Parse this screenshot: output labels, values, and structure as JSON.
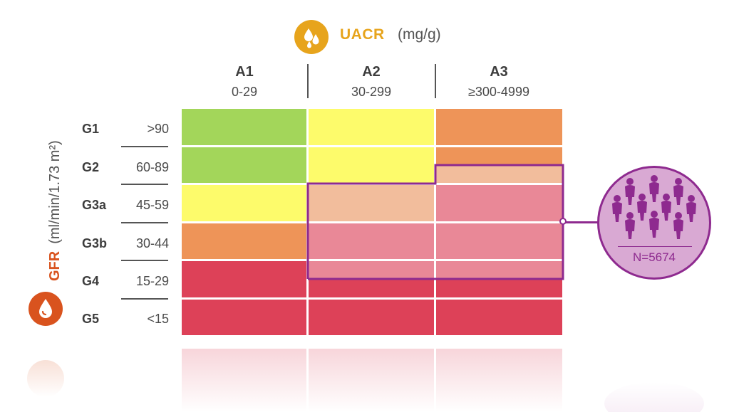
{
  "header": {
    "uacr_title": "UACR",
    "uacr_unit": "(mg/g)",
    "uacr_icon": "drops-icon",
    "uacr_color": "#e7a41c"
  },
  "columns": [
    {
      "code": "A1",
      "range": "0-29"
    },
    {
      "code": "A2",
      "range": "30-299"
    },
    {
      "code": "A3",
      "range": "≥300-4999"
    }
  ],
  "axis": {
    "gfr_title": "GFR",
    "gfr_unit": "(ml/min/1.73 m²)",
    "gfr_icon": "drop-icon",
    "gfr_color": "#d9531e"
  },
  "rows": [
    {
      "code": "G1",
      "range": ">90"
    },
    {
      "code": "G2",
      "range": "60-89"
    },
    {
      "code": "G3a",
      "range": "45-59"
    },
    {
      "code": "G3b",
      "range": "30-44"
    },
    {
      "code": "G4",
      "range": "15-29"
    },
    {
      "code": "G5",
      "range": "<15"
    }
  ],
  "risk_colors": {
    "low": "#a3d65a",
    "moderate": "#fdfb6b",
    "high": "#ee9458",
    "very_high": "#dd4158",
    "highlight_light": "#f2bd9c",
    "highlight_pink": "#e98897"
  },
  "population": {
    "label": "N=5674",
    "icon": "people-icon",
    "color": "#8e2a8f"
  }
}
